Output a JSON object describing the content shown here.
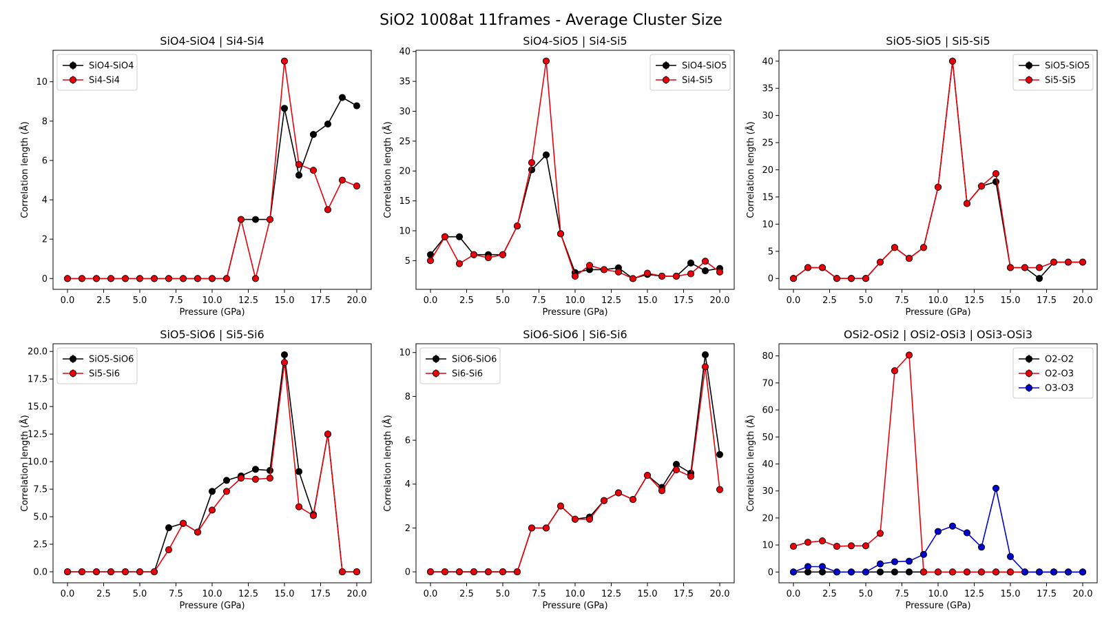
{
  "figure": {
    "suptitle": "SiO2 1008at 11frames - Average Cluster Size"
  },
  "chart_data": [
    {
      "type": "line",
      "title": "SiO4-SiO4 | Si4-Si4",
      "xlabel": "Pressure (GPa)",
      "ylabel": "Correlation length (Å)",
      "xlim": [
        -1,
        21
      ],
      "ylim": [
        -0.55,
        11.6
      ],
      "xticks": [
        0,
        2.5,
        5,
        7.5,
        10,
        12.5,
        15,
        17.5,
        20
      ],
      "xtick_labels": [
        "0.0",
        "2.5",
        "5.0",
        "7.5",
        "10.0",
        "12.5",
        "15.0",
        "17.5",
        "20.0"
      ],
      "yticks": [
        0,
        2,
        4,
        6,
        8,
        10
      ],
      "ytick_labels": [
        "0",
        "2",
        "4",
        "6",
        "8",
        "10"
      ],
      "legend_loc": "upper-left",
      "x": [
        0,
        1,
        2,
        3,
        4,
        5,
        6,
        7,
        8,
        9,
        10,
        11,
        12,
        13,
        14,
        15,
        16,
        17,
        18,
        19,
        20
      ],
      "series": [
        {
          "name": "SiO4-SiO4",
          "color": "#000000",
          "values": [
            0,
            0,
            0,
            0,
            0,
            0,
            0,
            0,
            0,
            0,
            0,
            0,
            3,
            3,
            3,
            8.65,
            5.25,
            7.32,
            7.85,
            9.2,
            8.78
          ]
        },
        {
          "name": "Si4-Si4",
          "color": "#e8000b",
          "values": [
            0,
            0,
            0,
            0,
            0,
            0,
            0,
            0,
            0,
            0,
            0,
            0,
            3,
            0,
            3,
            11.05,
            5.8,
            5.5,
            3.5,
            5.0,
            4.7
          ]
        }
      ]
    },
    {
      "type": "line",
      "title": "SiO4-SiO5 | Si4-Si5",
      "xlabel": "Pressure (GPa)",
      "ylabel": "Correlation length (Å)",
      "xlim": [
        -1,
        21
      ],
      "ylim": [
        0.2,
        40.2
      ],
      "xticks": [
        0,
        2.5,
        5,
        7.5,
        10,
        12.5,
        15,
        17.5,
        20
      ],
      "xtick_labels": [
        "0.0",
        "2.5",
        "5.0",
        "7.5",
        "10.0",
        "12.5",
        "15.0",
        "17.5",
        "20.0"
      ],
      "yticks": [
        5,
        10,
        15,
        20,
        25,
        30,
        35,
        40
      ],
      "ytick_labels": [
        "5",
        "10",
        "15",
        "20",
        "25",
        "30",
        "35",
        "40"
      ],
      "legend_loc": "upper-right",
      "x": [
        0,
        1,
        2,
        3,
        4,
        5,
        6,
        7,
        8,
        9,
        10,
        11,
        12,
        13,
        14,
        15,
        16,
        17,
        18,
        19,
        20
      ],
      "series": [
        {
          "name": "SiO4-SiO5",
          "color": "#000000",
          "values": [
            6,
            9,
            9,
            6,
            6,
            6,
            10.8,
            20.2,
            22.7,
            9.5,
            3,
            3.5,
            3.5,
            3.8,
            2,
            2.7,
            2.4,
            2.4,
            4.6,
            3.3,
            3.7
          ]
        },
        {
          "name": "Si4-Si5",
          "color": "#e8000b",
          "values": [
            5,
            9,
            4.5,
            6,
            5.5,
            6,
            10.8,
            21.4,
            38.4,
            9.5,
            2.4,
            4.2,
            3.5,
            3.1,
            2,
            2.9,
            2.4,
            2.4,
            2.8,
            4.9,
            3.1
          ]
        }
      ]
    },
    {
      "type": "line",
      "title": "SiO5-SiO5 | Si5-Si5",
      "xlabel": "Pressure (GPa)",
      "ylabel": "Correlation length (Å)",
      "xlim": [
        -1,
        21
      ],
      "ylim": [
        -2,
        42
      ],
      "xticks": [
        0,
        2.5,
        5,
        7.5,
        10,
        12.5,
        15,
        17.5,
        20
      ],
      "xtick_labels": [
        "0.0",
        "2.5",
        "5.0",
        "7.5",
        "10.0",
        "12.5",
        "15.0",
        "17.5",
        "20.0"
      ],
      "yticks": [
        0,
        5,
        10,
        15,
        20,
        25,
        30,
        35,
        40
      ],
      "ytick_labels": [
        "0",
        "5",
        "10",
        "15",
        "20",
        "25",
        "30",
        "35",
        "40"
      ],
      "legend_loc": "upper-right",
      "x": [
        0,
        1,
        2,
        3,
        4,
        5,
        6,
        7,
        8,
        9,
        10,
        11,
        12,
        13,
        14,
        15,
        16,
        17,
        18,
        19,
        20
      ],
      "series": [
        {
          "name": "SiO5-SiO5",
          "color": "#000000",
          "values": [
            0,
            2,
            2,
            0,
            0,
            0,
            3,
            5.7,
            3.7,
            5.7,
            16.8,
            40,
            13.8,
            17,
            17.8,
            2,
            2,
            0,
            3,
            3,
            3
          ]
        },
        {
          "name": "Si5-Si5",
          "color": "#e8000b",
          "values": [
            0,
            2,
            2,
            0,
            0,
            0,
            3,
            5.7,
            3.7,
            5.7,
            16.8,
            40,
            13.8,
            17,
            19.3,
            2,
            2,
            2,
            3,
            3,
            3
          ]
        }
      ]
    },
    {
      "type": "line",
      "title": "SiO5-SiO6 | Si5-Si6",
      "xlabel": "Pressure (GPa)",
      "ylabel": "Correlation length (Å)",
      "xlim": [
        -1,
        21
      ],
      "ylim": [
        -1,
        20.7
      ],
      "xticks": [
        0,
        2.5,
        5,
        7.5,
        10,
        12.5,
        15,
        17.5,
        20
      ],
      "xtick_labels": [
        "0.0",
        "2.5",
        "5.0",
        "7.5",
        "10.0",
        "12.5",
        "15.0",
        "17.5",
        "20.0"
      ],
      "yticks": [
        0,
        2.5,
        5,
        7.5,
        10,
        12.5,
        15,
        17.5,
        20
      ],
      "ytick_labels": [
        "0.0",
        "2.5",
        "5.0",
        "7.5",
        "10.0",
        "12.5",
        "15.0",
        "17.5",
        "20.0"
      ],
      "legend_loc": "upper-left",
      "x": [
        0,
        1,
        2,
        3,
        4,
        5,
        6,
        7,
        8,
        9,
        10,
        11,
        12,
        13,
        14,
        15,
        16,
        17,
        18,
        19,
        20
      ],
      "series": [
        {
          "name": "SiO5-SiO6",
          "color": "#000000",
          "values": [
            0,
            0,
            0,
            0,
            0,
            0,
            0,
            4,
            4.4,
            3.6,
            7.3,
            8.3,
            8.7,
            9.3,
            9.2,
            19.7,
            9.1,
            5.2,
            12.5,
            0,
            0
          ]
        },
        {
          "name": "Si5-Si6",
          "color": "#e8000b",
          "values": [
            0,
            0,
            0,
            0,
            0,
            0,
            0,
            2,
            4.4,
            3.6,
            5.6,
            7.3,
            8.5,
            8.4,
            8.5,
            19.0,
            5.9,
            5.1,
            12.5,
            0,
            0
          ]
        }
      ]
    },
    {
      "type": "line",
      "title": "SiO6-SiO6 | Si6-Si6",
      "xlabel": "Pressure (GPa)",
      "ylabel": "Correlation length (Å)",
      "xlim": [
        -1,
        21
      ],
      "ylim": [
        -0.5,
        10.4
      ],
      "xticks": [
        0,
        2.5,
        5,
        7.5,
        10,
        12.5,
        15,
        17.5,
        20
      ],
      "xtick_labels": [
        "0.0",
        "2.5",
        "5.0",
        "7.5",
        "10.0",
        "12.5",
        "15.0",
        "17.5",
        "20.0"
      ],
      "yticks": [
        0,
        2,
        4,
        6,
        8,
        10
      ],
      "ytick_labels": [
        "0",
        "2",
        "4",
        "6",
        "8",
        "10"
      ],
      "legend_loc": "upper-left",
      "x": [
        0,
        1,
        2,
        3,
        4,
        5,
        6,
        7,
        8,
        9,
        10,
        11,
        12,
        13,
        14,
        15,
        16,
        17,
        18,
        19,
        20
      ],
      "series": [
        {
          "name": "SiO6-SiO6",
          "color": "#000000",
          "values": [
            0,
            0,
            0,
            0,
            0,
            0,
            0,
            2,
            2,
            3,
            2.4,
            2.5,
            3.25,
            3.6,
            3.3,
            4.4,
            3.85,
            4.9,
            4.5,
            9.9,
            5.35
          ]
        },
        {
          "name": "Si6-Si6",
          "color": "#e8000b",
          "values": [
            0,
            0,
            0,
            0,
            0,
            0,
            0,
            2,
            2,
            3,
            2.4,
            2.4,
            3.25,
            3.6,
            3.3,
            4.4,
            3.7,
            4.65,
            4.35,
            9.35,
            3.75
          ]
        }
      ]
    },
    {
      "type": "line",
      "title": "OSi2-OSi2 | OSi2-OSi3 | OSi3-OSi3",
      "xlabel": "Pressure (GPa)",
      "ylabel": "Correlation length (Å)",
      "xlim": [
        -1,
        21
      ],
      "ylim": [
        -4,
        84.5
      ],
      "xticks": [
        0,
        2.5,
        5,
        7.5,
        10,
        12.5,
        15,
        17.5,
        20
      ],
      "xtick_labels": [
        "0.0",
        "2.5",
        "5.0",
        "7.5",
        "10.0",
        "12.5",
        "15.0",
        "17.5",
        "20.0"
      ],
      "yticks": [
        0,
        10,
        20,
        30,
        40,
        50,
        60,
        70,
        80
      ],
      "ytick_labels": [
        "0",
        "10",
        "20",
        "30",
        "40",
        "50",
        "60",
        "70",
        "80"
      ],
      "legend_loc": "upper-right",
      "x": [
        0,
        1,
        2,
        3,
        4,
        5,
        6,
        7,
        8,
        9,
        10,
        11,
        12,
        13,
        14,
        15,
        16,
        17,
        18,
        19,
        20
      ],
      "series": [
        {
          "name": "O2-O2",
          "color": "#000000",
          "values": [
            0,
            0,
            0,
            0,
            0,
            0,
            0,
            0,
            0,
            0,
            0,
            0,
            0,
            0,
            0,
            0,
            0,
            0,
            0,
            0,
            0
          ]
        },
        {
          "name": "O2-O3",
          "color": "#e8000b",
          "values": [
            9.5,
            11,
            11.5,
            9.5,
            9.7,
            9.7,
            14.3,
            74.5,
            80.3,
            0,
            0,
            0,
            0,
            0,
            0,
            0,
            0,
            0,
            0,
            0,
            0
          ]
        },
        {
          "name": "O3-O3",
          "color": "#0000cc",
          "values": [
            0,
            2,
            2,
            0,
            0,
            0,
            3,
            3.8,
            4,
            6.5,
            15,
            17,
            14.5,
            9.2,
            31,
            5.7,
            0,
            0,
            0,
            0,
            0
          ]
        }
      ]
    }
  ]
}
